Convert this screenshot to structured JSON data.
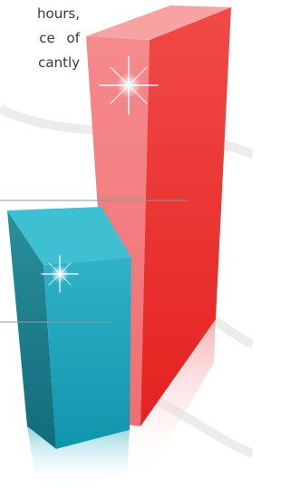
{
  "text_lines": [
    "hours,",
    "ce of",
    "cantly"
  ]
}
